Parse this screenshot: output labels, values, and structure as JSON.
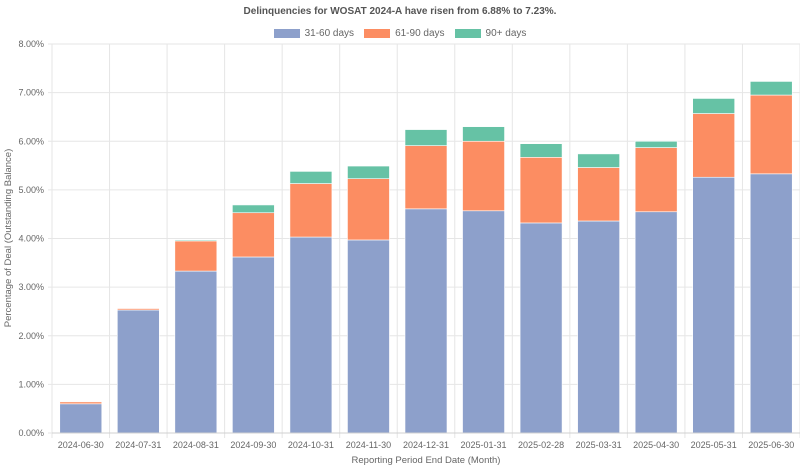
{
  "chart_data": {
    "type": "bar",
    "stacked": true,
    "title": "Delinquencies for WOSAT 2024-A have risen from 6.88% to 7.23%.",
    "xlabel": "Reporting Period End Date (Month)",
    "ylabel": "Percentage of Deal (Outstanding Balance)",
    "ylim": [
      0,
      8
    ],
    "yticks": [
      "0.00%",
      "1.00%",
      "2.00%",
      "3.00%",
      "4.00%",
      "5.00%",
      "6.00%",
      "7.00%",
      "8.00%"
    ],
    "grid": true,
    "legend_position": "top-center",
    "categories": [
      "2024-06-30",
      "2024-07-31",
      "2024-08-31",
      "2024-09-30",
      "2024-10-31",
      "2024-11-30",
      "2024-12-31",
      "2025-01-31",
      "2025-02-28",
      "2025-03-31",
      "2025-04-30",
      "2025-05-31",
      "2025-06-30"
    ],
    "series": [
      {
        "name": "31-60 days",
        "color": "#8da0cb",
        "values": [
          0.6,
          2.53,
          3.33,
          3.62,
          4.03,
          3.97,
          4.61,
          4.57,
          4.32,
          4.36,
          4.55,
          5.26,
          5.33
        ]
      },
      {
        "name": "61-90 days",
        "color": "#fc8d62",
        "values": [
          0.04,
          0.03,
          0.62,
          0.91,
          1.1,
          1.26,
          1.3,
          1.43,
          1.35,
          1.1,
          1.32,
          1.31,
          1.62
        ]
      },
      {
        "name": "90+ days",
        "color": "#66c2a5",
        "values": [
          0.0,
          0.0,
          0.02,
          0.16,
          0.25,
          0.26,
          0.33,
          0.3,
          0.28,
          0.28,
          0.13,
          0.31,
          0.28
        ]
      }
    ]
  }
}
